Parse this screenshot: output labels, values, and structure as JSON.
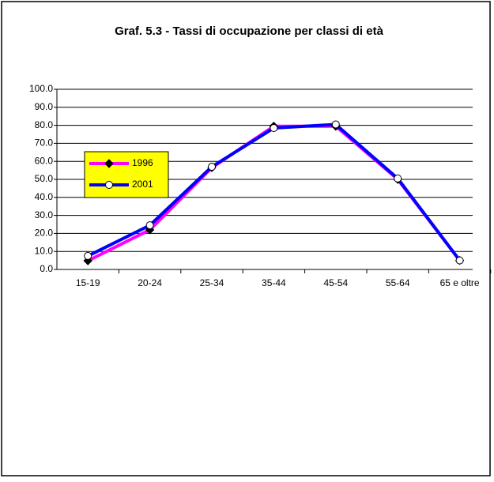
{
  "chart_data": {
    "type": "line",
    "title": "Graf. 5.3 - Tassi di occupazione per classi di età",
    "categories": [
      "15-19",
      "20-24",
      "25-34",
      "35-44",
      "45-54",
      "55-64",
      "65 e oltre"
    ],
    "series": [
      {
        "name": "1996",
        "color": "#ff00ff",
        "marker": "diamond",
        "marker_color": "#000000",
        "values": [
          4.8,
          22,
          56.5,
          79.5,
          79.5,
          50,
          5
        ]
      },
      {
        "name": "2001",
        "color": "#0000ff",
        "marker": "circle",
        "marker_color": "#ffffff",
        "values": [
          7.5,
          24.5,
          57,
          78.5,
          80.5,
          50.5,
          5
        ]
      }
    ],
    "ylim": [
      0,
      100
    ],
    "yticks": [
      {
        "value": 0,
        "label": "0.0"
      },
      {
        "value": 10,
        "label": "10.0"
      },
      {
        "value": 20,
        "label": "20.0"
      },
      {
        "value": 30,
        "label": "30.0"
      },
      {
        "value": 40,
        "label": "40.0"
      },
      {
        "value": 50,
        "label": "50.0"
      },
      {
        "value": 60,
        "label": "60.0"
      },
      {
        "value": 70,
        "label": "70.0"
      },
      {
        "value": 80,
        "label": "80.0"
      },
      {
        "value": 90,
        "label": "90.0"
      },
      {
        "value": 100,
        "label": "100.0"
      }
    ],
    "grid": true,
    "legend": "upper left"
  }
}
